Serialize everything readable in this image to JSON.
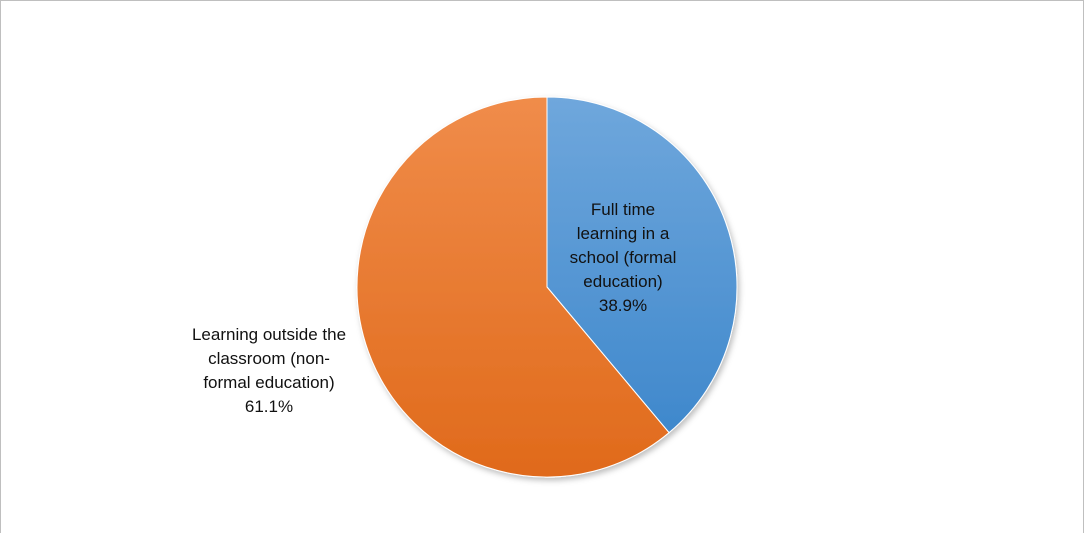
{
  "chart_data": {
    "type": "pie",
    "title": "",
    "slices": [
      {
        "label_lines": [
          "Full time",
          "learning in a",
          "school (formal",
          "education)"
        ],
        "value": 38.9,
        "value_label": "38.9%",
        "color": "#5b9bd5"
      },
      {
        "label_lines": [
          "Learning outside the",
          "classroom (non-",
          "formal education)"
        ],
        "value": 61.1,
        "value_label": "61.1%",
        "color": "#ed7d31"
      }
    ],
    "start_angle": "12 o'clock, clockwise",
    "legend": "none",
    "border_color": "#bfbfbf"
  }
}
